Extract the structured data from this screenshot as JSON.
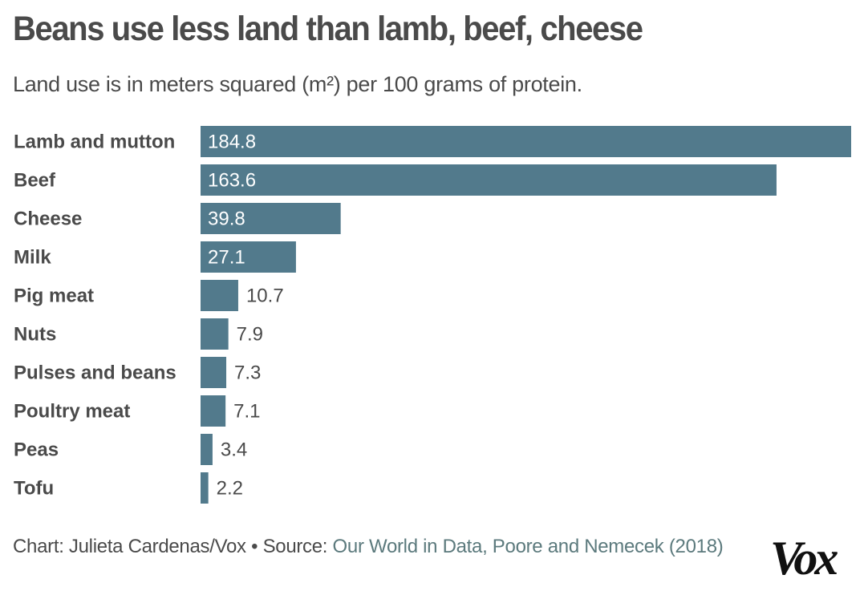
{
  "header": {
    "title": "Beans use less land than lamb, beef, cheese",
    "subtitle": "Land use is in meters squared (m²) per 100 grams of protein."
  },
  "footer": {
    "credit": "Chart: Julieta Cardenas/Vox • Source: ",
    "source_link": "Our World in Data, Poore and Nemecek (2018)",
    "logo": "Vox"
  },
  "colors": {
    "bar": "#527a8c",
    "text": "#4a4a4a",
    "link": "#5c7a7d"
  },
  "chart_data": {
    "type": "bar",
    "orientation": "horizontal",
    "title": "Beans use less land than lamb, beef, cheese",
    "subtitle": "Land use is in meters squared (m²) per 100 grams of protein.",
    "xlabel": "",
    "ylabel": "",
    "xlim": [
      0,
      184.8
    ],
    "grid": false,
    "legend": "none",
    "categories": [
      "Lamb and mutton",
      "Beef",
      "Cheese",
      "Milk",
      "Pig meat",
      "Nuts",
      "Pulses and beans",
      "Poultry meat",
      "Peas",
      "Tofu"
    ],
    "values": [
      184.8,
      163.6,
      39.8,
      27.1,
      10.7,
      7.9,
      7.3,
      7.1,
      3.4,
      2.2
    ],
    "value_labels": [
      "184.8",
      "163.6",
      "39.8",
      "27.1",
      "10.7",
      "7.9",
      "7.3",
      "7.1",
      "3.4",
      "2.2"
    ]
  }
}
